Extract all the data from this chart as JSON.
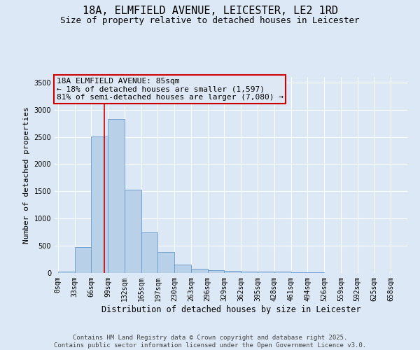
{
  "title": "18A, ELMFIELD AVENUE, LEICESTER, LE2 1RD",
  "subtitle": "Size of property relative to detached houses in Leicester",
  "xlabel": "Distribution of detached houses by size in Leicester",
  "ylabel": "Number of detached properties",
  "bar_values": [
    20,
    470,
    2510,
    2830,
    1530,
    750,
    390,
    155,
    75,
    55,
    45,
    30,
    25,
    20,
    10,
    10,
    5,
    5,
    5,
    5,
    2
  ],
  "bar_labels": [
    "0sqm",
    "33sqm",
    "66sqm",
    "99sqm",
    "132sqm",
    "165sqm",
    "197sqm",
    "230sqm",
    "263sqm",
    "296sqm",
    "329sqm",
    "362sqm",
    "395sqm",
    "428sqm",
    "461sqm",
    "494sqm",
    "526sqm",
    "559sqm",
    "592sqm",
    "625sqm",
    "658sqm"
  ],
  "bar_color": "#b8d0e8",
  "bar_edge_color": "#6699cc",
  "property_line_x": 2.8,
  "property_line_color": "#cc0000",
  "annotation_text_line1": "18A ELMFIELD AVENUE: 85sqm",
  "annotation_text_line2": "← 18% of detached houses are smaller (1,597)",
  "annotation_text_line3": "81% of semi-detached houses are larger (7,080) →",
  "annotation_box_color": "#cc0000",
  "annotation_bg_color": "#dde8f4",
  "ylim": [
    0,
    3600
  ],
  "yticks": [
    0,
    500,
    1000,
    1500,
    2000,
    2500,
    3000,
    3500
  ],
  "background_color": "#dce8f5",
  "plot_bg_color": "#dce8f5",
  "grid_color": "#ffffff",
  "footer_text": "Contains HM Land Registry data © Crown copyright and database right 2025.\nContains public sector information licensed under the Open Government Licence v3.0.",
  "title_fontsize": 11,
  "subtitle_fontsize": 9,
  "tick_fontsize": 7,
  "ylabel_fontsize": 8,
  "xlabel_fontsize": 8.5,
  "annotation_fontsize": 8,
  "footer_fontsize": 6.5
}
